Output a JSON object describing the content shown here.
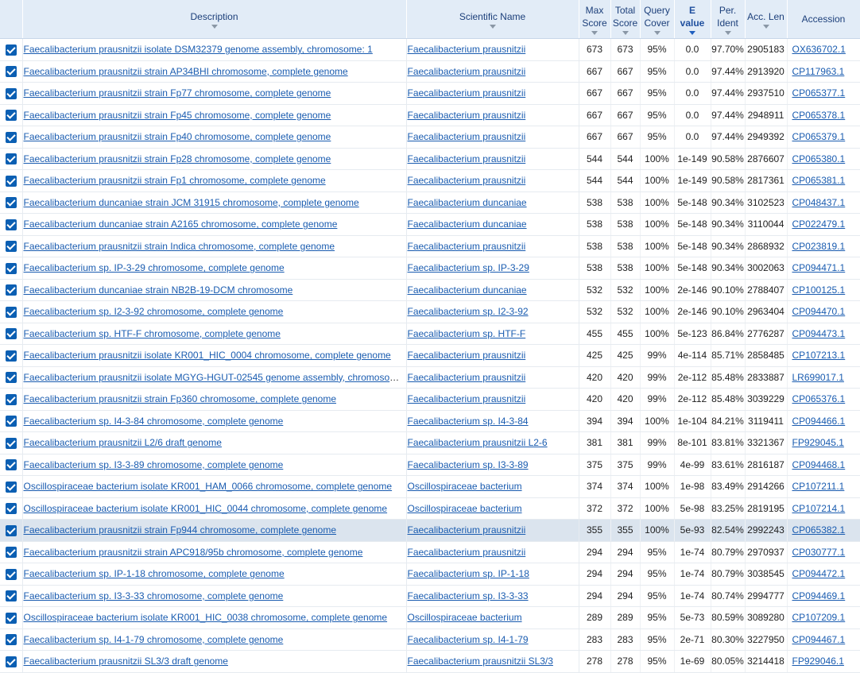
{
  "headers": {
    "description": "Description",
    "scientific_name": "Scientific Name",
    "max_score": [
      "Max",
      "Score"
    ],
    "total_score": [
      "Total",
      "Score"
    ],
    "query_cover": [
      "Query",
      "Cover"
    ],
    "e_value": [
      "E",
      "value"
    ],
    "per_ident": [
      "Per.",
      "Ident"
    ],
    "acc_len": "Acc. Len",
    "accession": "Accession"
  },
  "rows": [
    {
      "description": "Faecalibacterium prausnitzii isolate DSM32379 genome assembly, chromosome: 1",
      "scientific": "Faecalibacterium prausnitzii",
      "max": "673",
      "total": "673",
      "cover": "95%",
      "evalue": "0.0",
      "ident": "97.70%",
      "len": "2905183",
      "acc": "OX636702.1",
      "checked": true
    },
    {
      "description": "Faecalibacterium prausnitzii strain AP34BHI chromosome, complete genome",
      "scientific": "Faecalibacterium prausnitzii",
      "max": "667",
      "total": "667",
      "cover": "95%",
      "evalue": "0.0",
      "ident": "97.44%",
      "len": "2913920",
      "acc": "CP117963.1",
      "checked": true
    },
    {
      "description": "Faecalibacterium prausnitzii strain Fp77 chromosome, complete genome",
      "scientific": "Faecalibacterium prausnitzii",
      "max": "667",
      "total": "667",
      "cover": "95%",
      "evalue": "0.0",
      "ident": "97.44%",
      "len": "2937510",
      "acc": "CP065377.1",
      "checked": true
    },
    {
      "description": "Faecalibacterium prausnitzii strain Fp45 chromosome, complete genome",
      "scientific": "Faecalibacterium prausnitzii",
      "max": "667",
      "total": "667",
      "cover": "95%",
      "evalue": "0.0",
      "ident": "97.44%",
      "len": "2948911",
      "acc": "CP065378.1",
      "checked": true
    },
    {
      "description": "Faecalibacterium prausnitzii strain Fp40 chromosome, complete genome",
      "scientific": "Faecalibacterium prausnitzii",
      "max": "667",
      "total": "667",
      "cover": "95%",
      "evalue": "0.0",
      "ident": "97.44%",
      "len": "2949392",
      "acc": "CP065379.1",
      "checked": true
    },
    {
      "description": "Faecalibacterium prausnitzii strain Fp28 chromosome, complete genome",
      "scientific": "Faecalibacterium prausnitzii",
      "max": "544",
      "total": "544",
      "cover": "100%",
      "evalue": "1e-149",
      "ident": "90.58%",
      "len": "2876607",
      "acc": "CP065380.1",
      "checked": true
    },
    {
      "description": "Faecalibacterium prausnitzii strain Fp1 chromosome, complete genome",
      "scientific": "Faecalibacterium prausnitzii",
      "max": "544",
      "total": "544",
      "cover": "100%",
      "evalue": "1e-149",
      "ident": "90.58%",
      "len": "2817361",
      "acc": "CP065381.1",
      "checked": true
    },
    {
      "description": "Faecalibacterium duncaniae strain JCM 31915 chromosome, complete genome",
      "scientific": "Faecalibacterium duncaniae",
      "max": "538",
      "total": "538",
      "cover": "100%",
      "evalue": "5e-148",
      "ident": "90.34%",
      "len": "3102523",
      "acc": "CP048437.1",
      "checked": true
    },
    {
      "description": "Faecalibacterium duncaniae strain A2165 chromosome, complete genome",
      "scientific": "Faecalibacterium duncaniae",
      "max": "538",
      "total": "538",
      "cover": "100%",
      "evalue": "5e-148",
      "ident": "90.34%",
      "len": "3110044",
      "acc": "CP022479.1",
      "checked": true
    },
    {
      "description": "Faecalibacterium prausnitzii strain Indica chromosome, complete genome",
      "scientific": "Faecalibacterium prausnitzii",
      "max": "538",
      "total": "538",
      "cover": "100%",
      "evalue": "5e-148",
      "ident": "90.34%",
      "len": "2868932",
      "acc": "CP023819.1",
      "checked": true
    },
    {
      "description": "Faecalibacterium sp. IP-3-29 chromosome, complete genome",
      "scientific": "Faecalibacterium sp. IP-3-29",
      "max": "538",
      "total": "538",
      "cover": "100%",
      "evalue": "5e-148",
      "ident": "90.34%",
      "len": "3002063",
      "acc": "CP094471.1",
      "checked": true
    },
    {
      "description": "Faecalibacterium duncaniae strain NB2B-19-DCM chromosome",
      "scientific": "Faecalibacterium duncaniae",
      "max": "532",
      "total": "532",
      "cover": "100%",
      "evalue": "2e-146",
      "ident": "90.10%",
      "len": "2788407",
      "acc": "CP100125.1",
      "checked": true
    },
    {
      "description": "Faecalibacterium sp. I2-3-92 chromosome, complete genome",
      "scientific": "Faecalibacterium sp. I2-3-92",
      "max": "532",
      "total": "532",
      "cover": "100%",
      "evalue": "2e-146",
      "ident": "90.10%",
      "len": "2963404",
      "acc": "CP094470.1",
      "checked": true
    },
    {
      "description": "Faecalibacterium sp. HTF-F chromosome, complete genome",
      "scientific": "Faecalibacterium sp. HTF-F",
      "max": "455",
      "total": "455",
      "cover": "100%",
      "evalue": "5e-123",
      "ident": "86.84%",
      "len": "2776287",
      "acc": "CP094473.1",
      "checked": true
    },
    {
      "description": "Faecalibacterium prausnitzii isolate KR001_HIC_0004 chromosome, complete genome",
      "scientific": "Faecalibacterium prausnitzii",
      "max": "425",
      "total": "425",
      "cover": "99%",
      "evalue": "4e-114",
      "ident": "85.71%",
      "len": "2858485",
      "acc": "CP107213.1",
      "checked": true
    },
    {
      "description": "Faecalibacterium prausnitzii isolate MGYG-HGUT-02545 genome assembly, chromosom…",
      "scientific": "Faecalibacterium prausnitzii",
      "max": "420",
      "total": "420",
      "cover": "99%",
      "evalue": "2e-112",
      "ident": "85.48%",
      "len": "2833887",
      "acc": "LR699017.1",
      "checked": true
    },
    {
      "description": "Faecalibacterium prausnitzii strain Fp360 chromosome, complete genome",
      "scientific": "Faecalibacterium prausnitzii",
      "max": "420",
      "total": "420",
      "cover": "99%",
      "evalue": "2e-112",
      "ident": "85.48%",
      "len": "3039229",
      "acc": "CP065376.1",
      "checked": true
    },
    {
      "description": "Faecalibacterium sp. I4-3-84 chromosome, complete genome",
      "scientific": "Faecalibacterium sp. I4-3-84",
      "max": "394",
      "total": "394",
      "cover": "100%",
      "evalue": "1e-104",
      "ident": "84.21%",
      "len": "3119411",
      "acc": "CP094466.1",
      "checked": true
    },
    {
      "description": "Faecalibacterium prausnitzii L2/6 draft genome",
      "scientific": "Faecalibacterium prausnitzii L2-6",
      "max": "381",
      "total": "381",
      "cover": "99%",
      "evalue": "8e-101",
      "ident": "83.81%",
      "len": "3321367",
      "acc": "FP929045.1",
      "checked": true
    },
    {
      "description": "Faecalibacterium sp. I3-3-89 chromosome, complete genome",
      "scientific": "Faecalibacterium sp. I3-3-89",
      "max": "375",
      "total": "375",
      "cover": "99%",
      "evalue": "4e-99",
      "ident": "83.61%",
      "len": "2816187",
      "acc": "CP094468.1",
      "checked": true
    },
    {
      "description": "Oscillospiraceae bacterium isolate KR001_HAM_0066 chromosome, complete genome",
      "scientific": "Oscillospiraceae bacterium",
      "max": "374",
      "total": "374",
      "cover": "100%",
      "evalue": "1e-98",
      "ident": "83.49%",
      "len": "2914266",
      "acc": "CP107211.1",
      "checked": true
    },
    {
      "description": "Oscillospiraceae bacterium isolate KR001_HIC_0044 chromosome, complete genome",
      "scientific": "Oscillospiraceae bacterium",
      "max": "372",
      "total": "372",
      "cover": "100%",
      "evalue": "5e-98",
      "ident": "83.25%",
      "len": "2819195",
      "acc": "CP107214.1",
      "checked": true
    },
    {
      "description": "Faecalibacterium prausnitzii strain Fp944 chromosome, complete genome",
      "scientific": "Faecalibacterium prausnitzii",
      "max": "355",
      "total": "355",
      "cover": "100%",
      "evalue": "5e-93",
      "ident": "82.54%",
      "len": "2992243",
      "acc": "CP065382.1",
      "checked": true,
      "highlight": true
    },
    {
      "description": "Faecalibacterium prausnitzii strain APC918/95b chromosome, complete genome",
      "scientific": "Faecalibacterium prausnitzii",
      "max": "294",
      "total": "294",
      "cover": "95%",
      "evalue": "1e-74",
      "ident": "80.79%",
      "len": "2970937",
      "acc": "CP030777.1",
      "checked": true
    },
    {
      "description": "Faecalibacterium sp. IP-1-18 chromosome, complete genome",
      "scientific": "Faecalibacterium sp. IP-1-18",
      "max": "294",
      "total": "294",
      "cover": "95%",
      "evalue": "1e-74",
      "ident": "80.79%",
      "len": "3038545",
      "acc": "CP094472.1",
      "checked": true
    },
    {
      "description": "Faecalibacterium sp. I3-3-33 chromosome, complete genome",
      "scientific": "Faecalibacterium sp. I3-3-33",
      "max": "294",
      "total": "294",
      "cover": "95%",
      "evalue": "1e-74",
      "ident": "80.74%",
      "len": "2994777",
      "acc": "CP094469.1",
      "checked": true
    },
    {
      "description": "Oscillospiraceae bacterium isolate KR001_HIC_0038 chromosome, complete genome",
      "scientific": "Oscillospiraceae bacterium",
      "max": "289",
      "total": "289",
      "cover": "95%",
      "evalue": "5e-73",
      "ident": "80.59%",
      "len": "3089280",
      "acc": "CP107209.1",
      "checked": true
    },
    {
      "description": "Faecalibacterium sp. I4-1-79 chromosome, complete genome",
      "scientific": "Faecalibacterium sp. I4-1-79",
      "max": "283",
      "total": "283",
      "cover": "95%",
      "evalue": "2e-71",
      "ident": "80.30%",
      "len": "3227950",
      "acc": "CP094467.1",
      "checked": true
    },
    {
      "description": "Faecalibacterium prausnitzii SL3/3 draft genome",
      "scientific": "Faecalibacterium prausnitzii SL3/3",
      "max": "278",
      "total": "278",
      "cover": "95%",
      "evalue": "1e-69",
      "ident": "80.05%",
      "len": "3214418",
      "acc": "FP929046.1",
      "checked": true
    }
  ],
  "colors": {
    "header_bg": "#e2ecf7",
    "link": "#1a5cb0",
    "checkbox": "#0b5fb3",
    "highlight_row": "#dbe4ee"
  }
}
